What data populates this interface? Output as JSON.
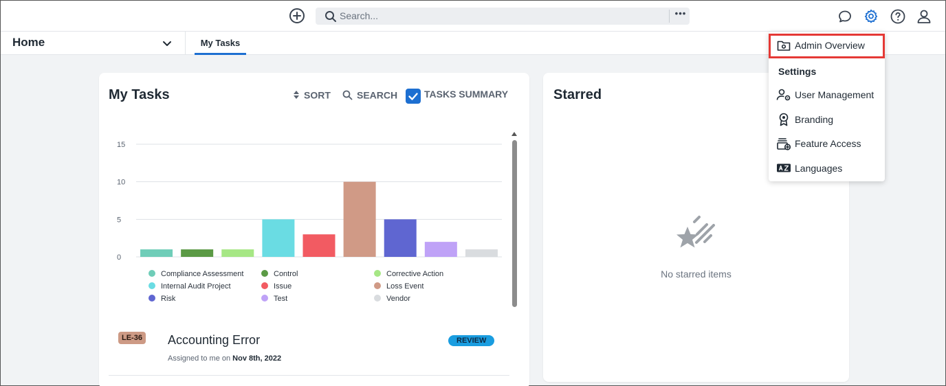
{
  "topbar": {
    "search_placeholder": "Search...",
    "more_label": "•••",
    "icons": [
      "add-icon",
      "search-icon",
      "chat-icon",
      "gear-icon",
      "help-icon",
      "user-icon"
    ]
  },
  "nav": {
    "home_label": "Home",
    "tab_label": "My Tasks"
  },
  "tasks_card": {
    "title": "My Tasks",
    "sort_label": "SORT",
    "search_label": "SEARCH",
    "summary_label": "TASKS SUMMARY",
    "summary_checked": true
  },
  "chart_data": {
    "type": "bar",
    "categories": [
      "Compliance Assessment",
      "Control",
      "Corrective Action",
      "Internal Audit Project",
      "Issue",
      "Loss Event",
      "Risk",
      "Test",
      "Vendor"
    ],
    "values": [
      1,
      1,
      1,
      5,
      3,
      10,
      5,
      2,
      1
    ],
    "colors": [
      "#6fcdb8",
      "#5b9a45",
      "#a6e785",
      "#6adce3",
      "#f25b62",
      "#d09a86",
      "#5f66d1",
      "#bfa2f7",
      "#d9dcdf"
    ],
    "ylim": [
      0,
      15
    ],
    "yticks": [
      0,
      5,
      10,
      15
    ],
    "legend_placement": "bottom",
    "grid": true
  },
  "task": {
    "id": "LE-36",
    "title": "Accounting Error",
    "status": "REVIEW",
    "assigned_prefix": "Assigned to me on ",
    "assigned_date": "Nov 8th, 2022",
    "id_color": "#cd9a85",
    "status_color": "#1a9de0"
  },
  "starred_card": {
    "title": "Starred",
    "empty_text": "No starred items"
  },
  "admin_menu": {
    "overview_label": "Admin Overview",
    "section_label": "Settings",
    "items": [
      {
        "label": "User Management",
        "icon": "user-gear-icon"
      },
      {
        "label": "Branding",
        "icon": "badge-icon"
      },
      {
        "label": "Feature Access",
        "icon": "feature-access-icon"
      },
      {
        "label": "Languages",
        "icon": "language-icon"
      }
    ]
  },
  "colors": {
    "accent": "#1d6fd1",
    "highlight": "#e53935"
  }
}
